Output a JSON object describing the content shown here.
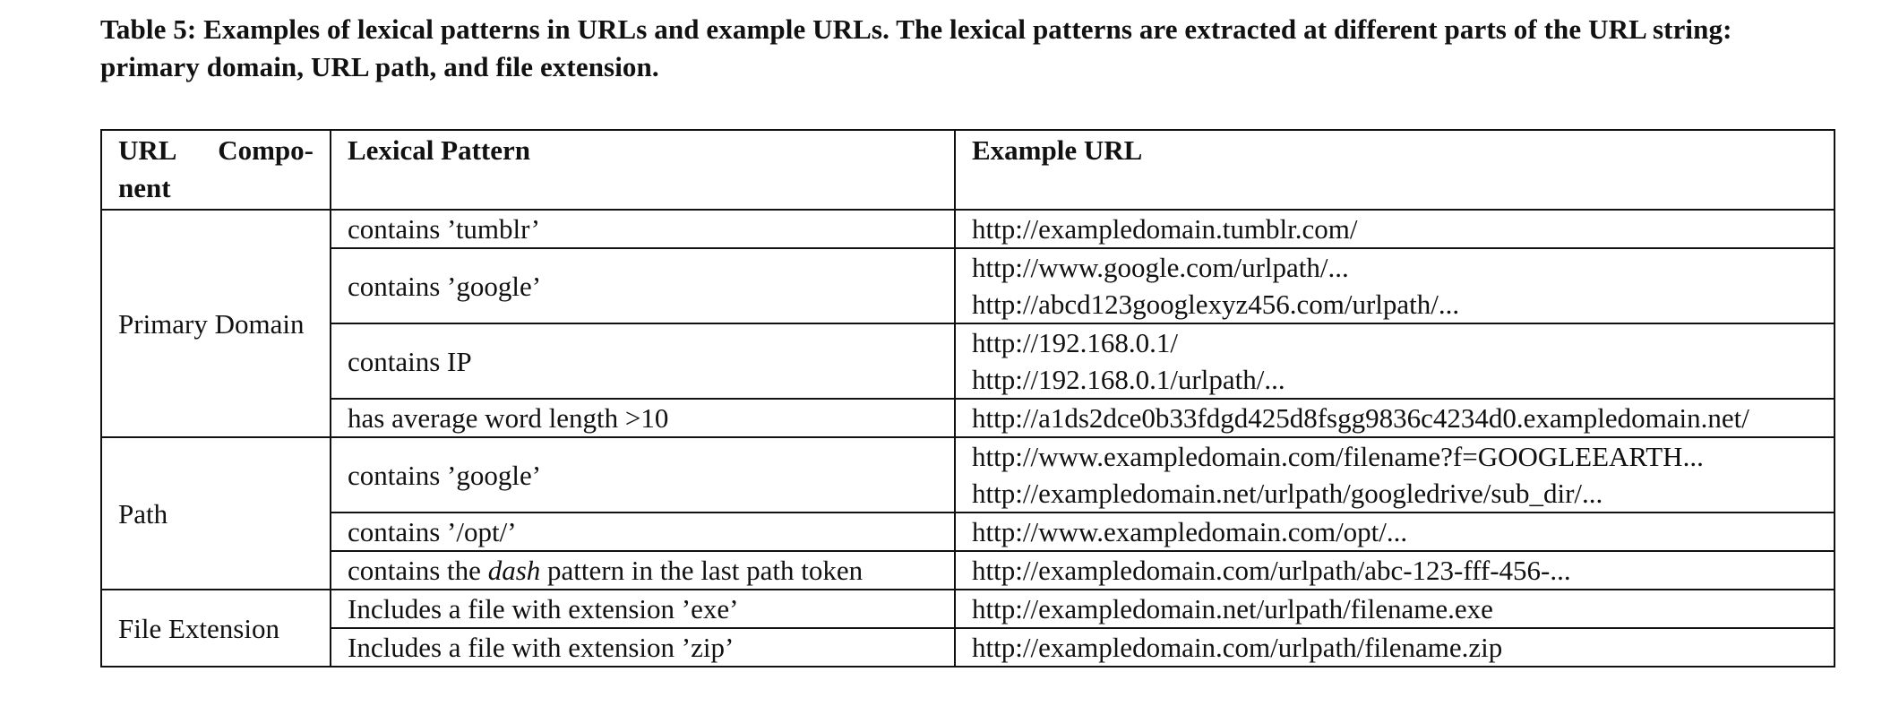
{
  "caption": "Table 5: Examples of lexical patterns in URLs and example URLs. The lexical patterns are extracted at different parts of the URL string: primary domain, URL path, and file extension.",
  "table": {
    "headers": {
      "component_word1": "URL",
      "component_word2": "Compo-",
      "component_word3": "nent",
      "pattern": "Lexical Pattern",
      "example": "Example URL"
    },
    "groups": [
      {
        "component": "Primary Domain",
        "rows": [
          {
            "pattern": "contains ’tumblr’",
            "urls": [
              "http://exampledomain.tumblr.com/"
            ]
          },
          {
            "pattern": "contains ’google’",
            "urls": [
              "http://www.google.com/urlpath/...",
              "http://abcd123googlexyz456.com/urlpath/..."
            ]
          },
          {
            "pattern": "contains IP",
            "urls": [
              "http://192.168.0.1/",
              "http://192.168.0.1/urlpath/..."
            ]
          },
          {
            "pattern": "has average word length >10",
            "urls": [
              "http://a1ds2dce0b33fdgd425d8fsgg9836c4234d0.exampledomain.net/"
            ]
          }
        ]
      },
      {
        "component": "Path",
        "rows": [
          {
            "pattern": "contains ’google’",
            "urls": [
              "http://www.exampledomain.com/filename?f=GOOGLEEARTH...",
              "http://exampledomain.net/urlpath/googledrive/sub_dir/..."
            ]
          },
          {
            "pattern": "contains ’/opt/’",
            "urls": [
              "http://www.exampledomain.com/opt/..."
            ]
          },
          {
            "pattern_before": "contains the ",
            "pattern_emph": "dash",
            "pattern_after": " pattern in the last path token",
            "urls": [
              "http://exampledomain.com/urlpath/abc-123-fff-456-..."
            ]
          }
        ]
      },
      {
        "component": "File Extension",
        "rows": [
          {
            "pattern": "Includes a file with extension ’exe’",
            "urls": [
              "http://exampledomain.net/urlpath/filename.exe"
            ]
          },
          {
            "pattern": "Includes a file with extension ’zip’",
            "urls": [
              "http://exampledomain.com/urlpath/filename.zip"
            ]
          }
        ]
      }
    ]
  }
}
